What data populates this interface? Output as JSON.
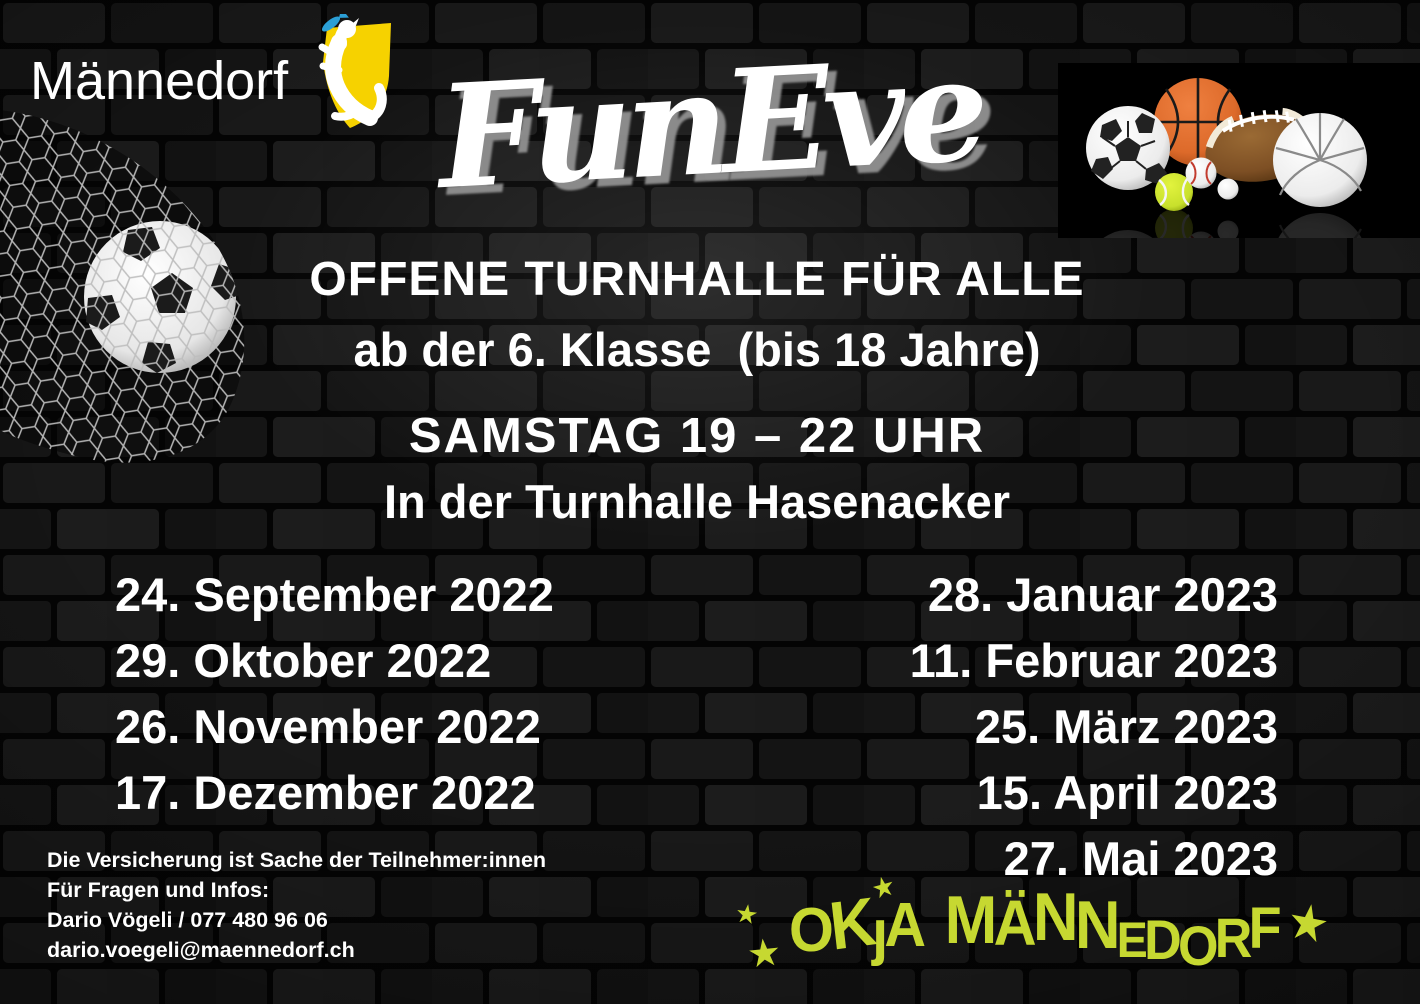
{
  "colors": {
    "background": "#0b0b0b",
    "brick": "#181818",
    "mortar": "#050505",
    "text": "#ffffff",
    "lime": "#c6d831",
    "title_shadow": "#919191",
    "shield_yellow": "#f6d200",
    "fish_blue": "#2b9fd6",
    "basketball_orange": "#dd6a2a",
    "tennis_yellow": "#c8e02c",
    "football_brown": "#7d4f24"
  },
  "header": {
    "municipality": "Männedorf",
    "crest_icon": "maennedorf-coat-of-arms",
    "title": "FunEve"
  },
  "body": {
    "headline1": "OFFENE TURNHALLE FÜR ALLE",
    "headline2": "ab der 6. Klasse  (bis 18 Jahre)",
    "schedule_day_time": "SAMSTAG 19 – 22 UHR",
    "schedule_location": "In der Turnhalle Hasenacker"
  },
  "dates_2022": [
    "24. September 2022",
    "29. Oktober 2022",
    "26. November 2022",
    "17. Dezember 2022"
  ],
  "dates_2023": [
    "28. Januar 2023",
    "11. Februar 2023",
    "25. März 2023",
    "15. April 2023",
    "27. Mai 2023"
  ],
  "footer": {
    "insurance_note": "Die Versicherung ist Sache der Teilnehmer:innen",
    "contact_intro": "Für Fragen und Infos:",
    "contact_line": "Dario Vögeli / 077 480 96 06",
    "contact_email": "dario.voegeli@maennedorf.ch"
  },
  "organizer": {
    "name": "OKjA Männedorf",
    "star_glyph": "★",
    "letters": [
      {
        "ch": "O",
        "cls": "c1"
      },
      {
        "ch": "K",
        "cls": "c2"
      },
      {
        "ch": "ȷ",
        "cls": "c3"
      },
      {
        "ch": "A",
        "cls": "c4"
      },
      {
        "ch": "M",
        "cls": "c5"
      },
      {
        "ch": "Ä",
        "cls": "c6"
      },
      {
        "ch": "N",
        "cls": "c7"
      },
      {
        "ch": "N",
        "cls": "c8"
      },
      {
        "ch": "E",
        "cls": "c9"
      },
      {
        "ch": "D",
        "cls": "c10"
      },
      {
        "ch": "O",
        "cls": "c11"
      },
      {
        "ch": "R",
        "cls": "c12"
      },
      {
        "ch": "F",
        "cls": "c13"
      }
    ]
  }
}
